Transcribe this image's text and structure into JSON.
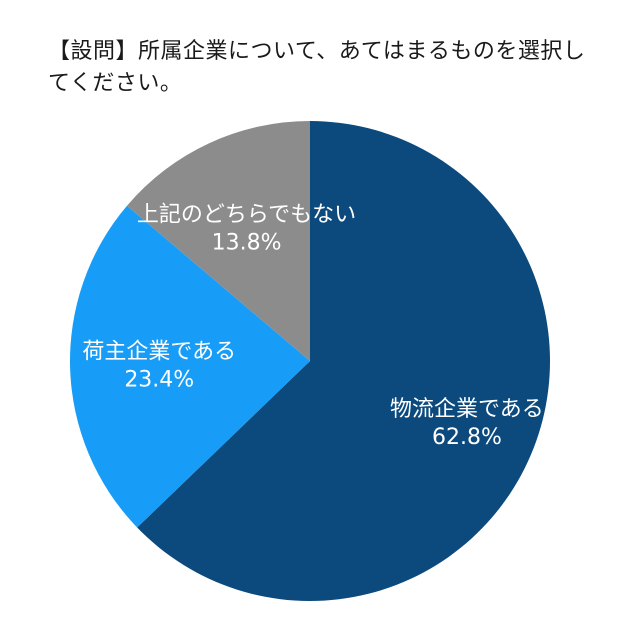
{
  "question": "【設問】所属企業について、あてはまるものを選択してください。",
  "chart_data": {
    "type": "pie",
    "start_angle_deg": 0,
    "direction": "clockwise",
    "slices": [
      {
        "label": "物流企業である",
        "value": 62.8,
        "value_label": "62.8%",
        "color": "#0c4a7e"
      },
      {
        "label": "荷主企業である",
        "value": 23.4,
        "value_label": "23.4%",
        "color": "#179df7"
      },
      {
        "label": "上記のどちらでもない",
        "value": 13.8,
        "value_label": "13.8%",
        "color": "#8c8c8c"
      }
    ]
  }
}
